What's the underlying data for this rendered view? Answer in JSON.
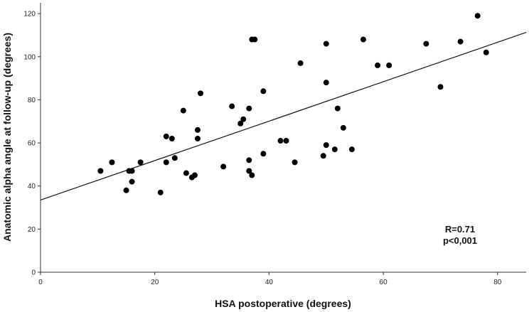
{
  "chart_data": {
    "type": "scatter",
    "xlabel": "HSA postoperative (degrees)",
    "ylabel": "Anatomic alpha angle at follow-up (degrees)",
    "xlim": [
      0,
      85
    ],
    "ylim": [
      0,
      125
    ],
    "xticks": [
      0,
      20,
      40,
      60,
      80
    ],
    "yticks": [
      0,
      20,
      40,
      60,
      80,
      100,
      120
    ],
    "grid": false,
    "annotation": [
      "R=0.71",
      "p<0,001"
    ],
    "fit_line": {
      "intercept": 33.5,
      "slope": 0.915
    },
    "points": [
      {
        "x": 10.5,
        "y": 47
      },
      {
        "x": 12.5,
        "y": 51
      },
      {
        "x": 15.0,
        "y": 38
      },
      {
        "x": 15.5,
        "y": 47
      },
      {
        "x": 16.0,
        "y": 47
      },
      {
        "x": 16.0,
        "y": 42
      },
      {
        "x": 17.5,
        "y": 51
      },
      {
        "x": 21.0,
        "y": 37
      },
      {
        "x": 22.0,
        "y": 51
      },
      {
        "x": 22.0,
        "y": 63
      },
      {
        "x": 23.0,
        "y": 62
      },
      {
        "x": 23.5,
        "y": 53
      },
      {
        "x": 25.0,
        "y": 75
      },
      {
        "x": 25.5,
        "y": 46
      },
      {
        "x": 26.5,
        "y": 44
      },
      {
        "x": 27.0,
        "y": 45
      },
      {
        "x": 27.5,
        "y": 62
      },
      {
        "x": 27.5,
        "y": 66
      },
      {
        "x": 28.0,
        "y": 83
      },
      {
        "x": 32.0,
        "y": 49
      },
      {
        "x": 33.5,
        "y": 77
      },
      {
        "x": 35.0,
        "y": 69
      },
      {
        "x": 35.5,
        "y": 71
      },
      {
        "x": 36.5,
        "y": 76
      },
      {
        "x": 36.5,
        "y": 52
      },
      {
        "x": 36.5,
        "y": 47
      },
      {
        "x": 37.0,
        "y": 45
      },
      {
        "x": 37.0,
        "y": 108
      },
      {
        "x": 37.5,
        "y": 108
      },
      {
        "x": 39.0,
        "y": 84
      },
      {
        "x": 39.0,
        "y": 55
      },
      {
        "x": 42.0,
        "y": 61
      },
      {
        "x": 43.0,
        "y": 61
      },
      {
        "x": 44.5,
        "y": 51
      },
      {
        "x": 45.5,
        "y": 97
      },
      {
        "x": 49.5,
        "y": 54
      },
      {
        "x": 50.0,
        "y": 59
      },
      {
        "x": 50.0,
        "y": 88
      },
      {
        "x": 50.0,
        "y": 106
      },
      {
        "x": 51.5,
        "y": 57
      },
      {
        "x": 52.0,
        "y": 76
      },
      {
        "x": 53.0,
        "y": 67
      },
      {
        "x": 54.5,
        "y": 57
      },
      {
        "x": 56.5,
        "y": 108
      },
      {
        "x": 59.0,
        "y": 96
      },
      {
        "x": 61.0,
        "y": 96
      },
      {
        "x": 67.5,
        "y": 106
      },
      {
        "x": 70.0,
        "y": 86
      },
      {
        "x": 73.5,
        "y": 107
      },
      {
        "x": 76.5,
        "y": 119
      },
      {
        "x": 78.0,
        "y": 102
      }
    ]
  }
}
